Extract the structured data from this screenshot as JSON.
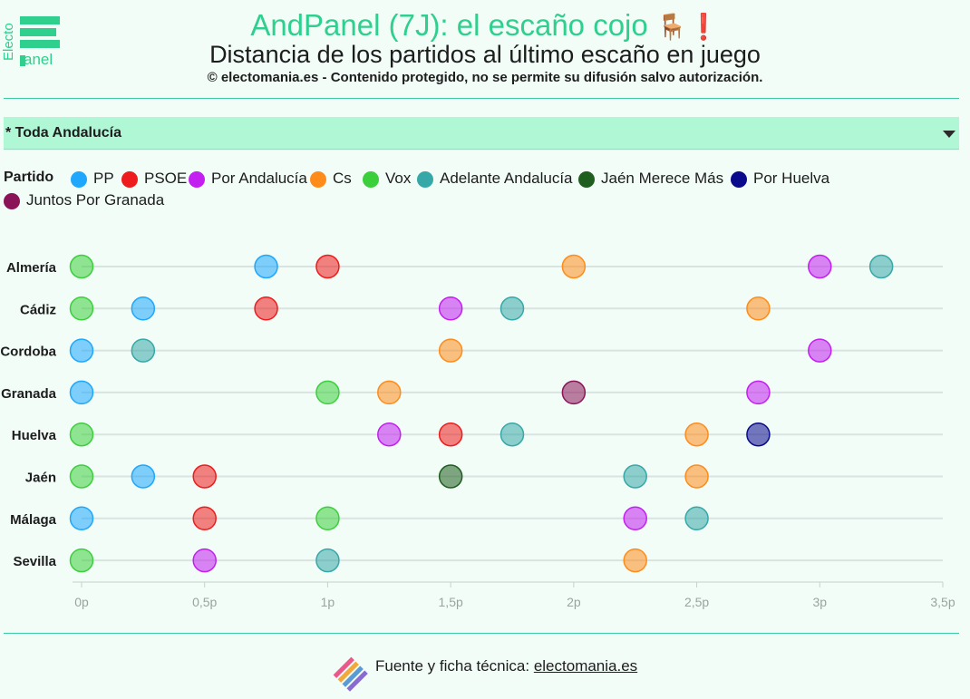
{
  "header": {
    "logo_text_top": "Electo",
    "logo_text_bottom": "anel",
    "title": "AndPanel (7J): el escaño cojo",
    "title_emoji_chair": "🪑",
    "title_emoji_bang": "❗",
    "subtitle": "Distancia de los partidos al último escaño en juego",
    "copyright": "© electomania.es - Contenido protegido, no se permite su difusión salvo autorización."
  },
  "filter": {
    "selected": "* Toda Andalucía"
  },
  "legend": {
    "title": "Partido"
  },
  "footer": {
    "prefix": "Fuente y ficha técnica: ",
    "link": "electomania.es"
  },
  "chart_data": {
    "type": "scatter",
    "title": "Distancia de los partidos al último escaño en juego",
    "x_unit": "p",
    "xlim": [
      0,
      3.5
    ],
    "x_ticks": [
      {
        "value": 0,
        "label": "0p"
      },
      {
        "value": 0.5,
        "label": "0,5p"
      },
      {
        "value": 1,
        "label": "1p"
      },
      {
        "value": 1.5,
        "label": "1,5p"
      },
      {
        "value": 2,
        "label": "2p"
      },
      {
        "value": 2.5,
        "label": "2,5p"
      },
      {
        "value": 3,
        "label": "3p"
      },
      {
        "value": 3.5,
        "label": "3,5p"
      }
    ],
    "categories": [
      "Almería",
      "Cádiz",
      "Cordoba",
      "Granada",
      "Huelva",
      "Jaén",
      "Málaga",
      "Sevilla"
    ],
    "grid": true,
    "legend_position": "top",
    "series": [
      {
        "name": "PP",
        "color": "#1ea7fd",
        "values": [
          0.75,
          0.25,
          0,
          0,
          null,
          0.25,
          0,
          null
        ]
      },
      {
        "name": "PSOE",
        "color": "#ee1c1c",
        "values": [
          1,
          0.75,
          null,
          null,
          1.5,
          0.5,
          0.5,
          null
        ]
      },
      {
        "name": "Por Andalucía",
        "color": "#c21ff0",
        "values": [
          3,
          1.5,
          3,
          2.75,
          1.25,
          null,
          2.25,
          0.5
        ]
      },
      {
        "name": "Cs",
        "color": "#ff8c1a",
        "values": [
          2,
          2.75,
          1.5,
          1.25,
          2.5,
          2.5,
          null,
          2.25
        ]
      },
      {
        "name": "Vox",
        "color": "#3ccf3c",
        "values": [
          0,
          0,
          null,
          1,
          0,
          0,
          1,
          0
        ]
      },
      {
        "name": "Adelante Andalucía",
        "color": "#36a8a8",
        "values": [
          3.25,
          1.75,
          0.25,
          null,
          1.75,
          2.25,
          2.5,
          1
        ]
      },
      {
        "name": "Jaén Merece Más",
        "color": "#1e5e1e",
        "values": [
          null,
          null,
          null,
          null,
          null,
          1.5,
          null,
          null
        ]
      },
      {
        "name": "Por Huelva",
        "color": "#0a0a8c",
        "values": [
          null,
          null,
          null,
          null,
          2.75,
          null,
          null,
          null
        ]
      },
      {
        "name": "Juntos Por Granada",
        "color": "#8a1457",
        "values": [
          null,
          null,
          null,
          2,
          null,
          null,
          null,
          null
        ]
      }
    ]
  }
}
